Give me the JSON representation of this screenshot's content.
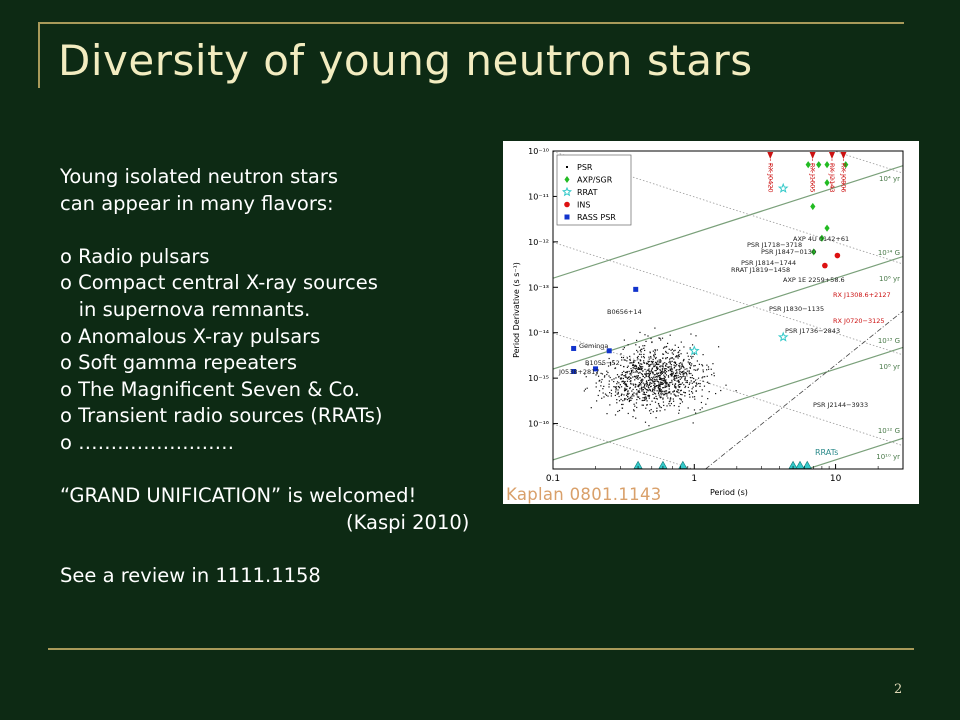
{
  "slide": {
    "title": "Diversity of young neutron stars",
    "page_number": "2",
    "lines": [
      "Young isolated neutron stars",
      "can appear in many flavors:",
      "",
      "o Radio pulsars",
      "o Compact central X-ray sources",
      "   in supernova remnants.",
      "o Anomalous X-ray pulsars",
      "o Soft gamma repeaters",
      "o The Magnificent Seven & Co.",
      "o Transient radio sources (RRATs)",
      "o ……………………",
      "",
      "“GRAND UNIFICATION” is welcomed!",
      "(Kaspi 2010)",
      "",
      "See a review in 1111.1158"
    ],
    "figure_caption": "Kaplan 0801.1143"
  },
  "chart_data": {
    "type": "scatter",
    "xlabel": "Period (s)",
    "ylabel": "Period Derivative (s s⁻¹)",
    "x_scale": "log",
    "y_scale": "log",
    "xlim": [
      0.1,
      30
    ],
    "ylim": [
      1e-17,
      1e-10
    ],
    "x_ticks": [
      "0.1",
      "1",
      "10"
    ],
    "y_ticks": [
      "10⁻¹⁶",
      "10⁻¹⁵",
      "10⁻¹⁴",
      "10⁻¹³",
      "10⁻¹²",
      "10⁻¹¹",
      "10⁻¹⁰"
    ],
    "legend_position": "top-left",
    "legend": [
      "PSR",
      "AXP/SGR",
      "RRAT",
      "INS",
      "RASS PSR"
    ],
    "colors": {
      "PSR": "#000000",
      "AXP/SGR": "#22bb22",
      "RRAT": "#33c9c9",
      "INS": "#dd1111",
      "RASS PSR": "#1133cc",
      "lines": "#7aa07a"
    },
    "series": [
      {
        "name": "AXP/SGR",
        "points": [
          [
            6.4,
            5e-11
          ],
          [
            7.6,
            5e-11
          ],
          [
            8.7,
            5e-11
          ],
          [
            11.8,
            5e-11
          ],
          [
            8.7,
            2e-11
          ],
          [
            8.7,
            2e-12
          ],
          [
            7,
            6e-13
          ],
          [
            8,
            1.2e-12
          ],
          [
            6.9,
            6e-12
          ]
        ]
      },
      {
        "name": "RRAT",
        "points": [
          [
            4.26,
            1.5e-11
          ],
          [
            4.26,
            8e-15
          ],
          [
            1.0,
            4e-15
          ],
          [
            5,
            1.2e-17
          ],
          [
            5.6,
            1.2e-17
          ],
          [
            6.3,
            1.2e-17
          ],
          [
            0.4,
            1.2e-17
          ],
          [
            0.6,
            1.2e-17
          ],
          [
            0.83,
            1.2e-17
          ]
        ]
      },
      {
        "name": "INS",
        "points": [
          [
            8.4,
            3e-13
          ],
          [
            10.3,
            5e-13
          ]
        ]
      },
      {
        "name": "RASS PSR",
        "points": [
          [
            0.385,
            9e-14
          ],
          [
            0.25,
            4e-15
          ],
          [
            0.2,
            1.6e-15
          ],
          [
            0.14,
            4.5e-15
          ],
          [
            0.14,
            1.4e-15
          ]
        ]
      }
    ],
    "arrows_INS": [
      {
        "label": "RX J0420",
        "P": 3.45
      },
      {
        "label": "RX J1605",
        "P": 6.88
      },
      {
        "label": "RX J2143",
        "P": 9.43
      },
      {
        "label": "RX J0806",
        "P": 11.37
      }
    ],
    "lines": [
      {
        "label": "10⁴ yr",
        "kind": "age"
      },
      {
        "label": "10⁶ yr",
        "kind": "age"
      },
      {
        "label": "10⁸ yr",
        "kind": "age"
      },
      {
        "label": "10¹⁰ yr",
        "kind": "age"
      },
      {
        "label": "10¹⁴ G",
        "kind": "field"
      },
      {
        "label": "10¹³ G",
        "kind": "field"
      },
      {
        "label": "10¹² G",
        "kind": "field"
      }
    ],
    "annotations": [
      "AXP 4U 0142+61",
      "PSR J1718−3718",
      "PSR J1847−0130",
      "PSR J1814−1744",
      "RRAT J1819−1458",
      "AXP 1E 2259+58.6",
      "RX J1308.6+2127",
      "RX J0720−3125",
      "PSR J1830−1135",
      "PSR J1736−2843",
      "PSR J2144−3933",
      "B0656+14",
      "Geminga",
      "B1055−52",
      "J0538+2817",
      "RRATs"
    ]
  }
}
